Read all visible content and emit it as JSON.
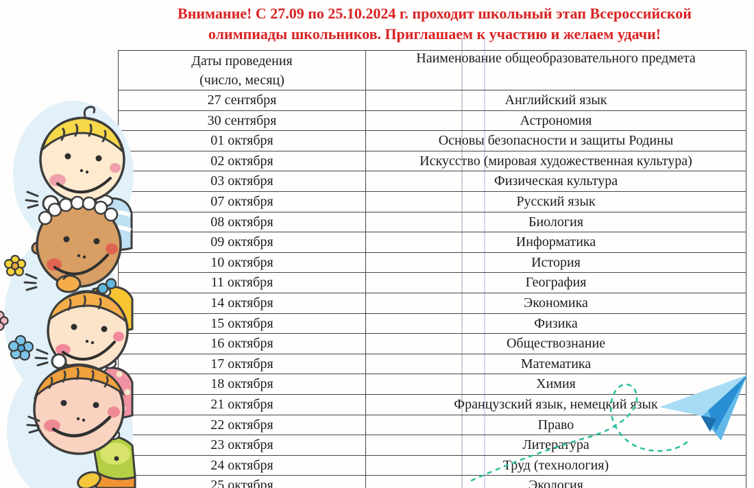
{
  "notice": {
    "line1": "Внимание! С 27.09 по 25.10.2024 г. проходит школьный этап Всероссийской",
    "line2": "олимпиады школьников. Приглашаем к участию и желаем удачи!"
  },
  "table": {
    "headers": {
      "dates_line1": "Даты проведения",
      "dates_line2": "(число, месяц)",
      "subject": "Наименование общеобразовательного предмета"
    },
    "rows": [
      {
        "date": "27 сентября",
        "subject": "Английский язык"
      },
      {
        "date": "30 сентября",
        "subject": "Астрономия"
      },
      {
        "date": "01 октября",
        "subject": "Основы безопасности и защиты Родины"
      },
      {
        "date": "02 октября",
        "subject": "Искусство (мировая художественная культура)"
      },
      {
        "date": "03 октября",
        "subject": "Физическая культура"
      },
      {
        "date": "07 октября",
        "subject": "Русский язык"
      },
      {
        "date": "08 октября",
        "subject": "Биология"
      },
      {
        "date": "09 октября",
        "subject": "Информатика"
      },
      {
        "date": "10 октября",
        "subject": "История"
      },
      {
        "date": "11 октября",
        "subject": "География"
      },
      {
        "date": "14 октября",
        "subject": "Экономика"
      },
      {
        "date": "15 октября",
        "subject": "Физика"
      },
      {
        "date": "16 октября",
        "subject": "Обществознание"
      },
      {
        "date": "17 октября",
        "subject": "Математика"
      },
      {
        "date": "18 октября",
        "subject": "Химия"
      },
      {
        "date": "21 октября",
        "subject": "Французский язык, немецкий язык"
      },
      {
        "date": "22 октября",
        "subject": "Право"
      },
      {
        "date": "23 октября",
        "subject": "Литература"
      },
      {
        "date": "24 октября",
        "subject": "Труд (технология)"
      },
      {
        "date": "25 октября",
        "subject": "Экология"
      }
    ]
  },
  "decorations": {
    "children_illustration": "four cartoon children peeking from the left edge, waving",
    "flowers": [
      "yellow-flower",
      "pink-flower",
      "blue-flower"
    ],
    "paper_airplane": "blue paper airplane flying to upper right",
    "trail": "dashed teal loop-the-loop flight trail"
  },
  "colors": {
    "notice_red": "#d92323",
    "table_border": "#454545",
    "notebook_line_gray": "#b3bfca",
    "notebook_line_blue": "#c7cdec",
    "blob_blue": "#e2f1f9",
    "airplane_light": "#a8dcf4",
    "airplane_mid": "#62b9e8",
    "airplane_dark": "#2a8ed2",
    "trail_teal": "#2ebfa2"
  }
}
